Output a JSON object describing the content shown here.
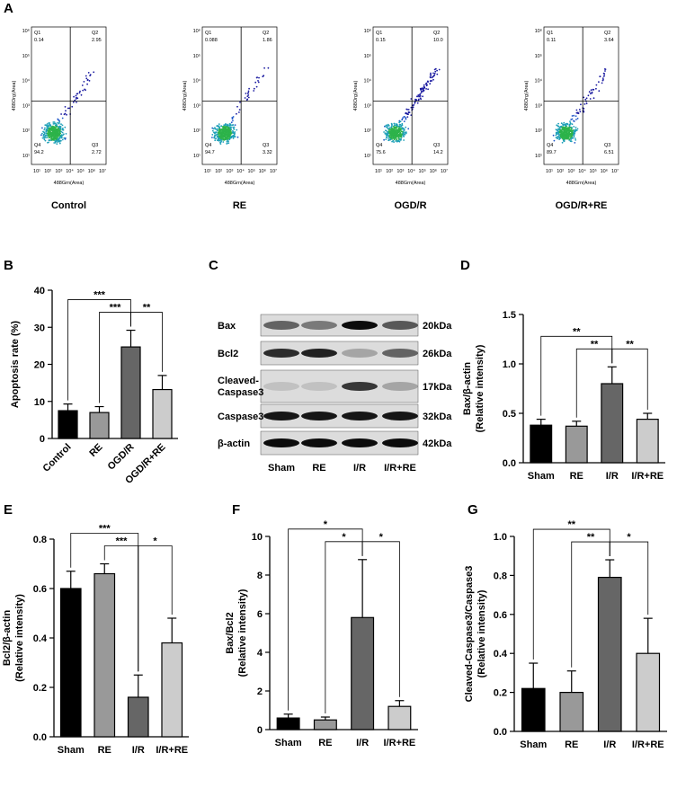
{
  "panel_labels": [
    "A",
    "B",
    "C",
    "D",
    "E",
    "F",
    "G"
  ],
  "flow_cytometry": {
    "x_axis_title": "488Grn(Area)",
    "y_axis_title": "488Org(Area)",
    "x_tick_labels": [
      "10¹",
      "10²",
      "10³",
      "10⁴",
      "10⁵",
      "10⁶",
      "10⁷"
    ],
    "y_tick_labels": [
      "10¹",
      "10²",
      "10³",
      "10⁴",
      "10⁵",
      "10⁶"
    ],
    "quadrant_names": [
      "Q1",
      "Q2",
      "Q3",
      "Q4"
    ],
    "plots": [
      {
        "name": "Control",
        "quadrants": [
          "0.14",
          "2.95",
          "2.72",
          "94.2"
        ]
      },
      {
        "name": "RE",
        "quadrants": [
          "0.088",
          "1.86",
          "3.32",
          "94.7"
        ]
      },
      {
        "name": "OGD/R",
        "quadrants": [
          "0.15",
          "10.0",
          "14.2",
          "75.6"
        ]
      },
      {
        "name": "OGD/R+RE",
        "quadrants": [
          "0.11",
          "3.64",
          "6.51",
          "89.7"
        ]
      }
    ]
  },
  "western_blot": {
    "proteins": [
      "Bax",
      "Bcl2",
      "Cleaved-\nCaspase3",
      "Caspase3",
      "β-actin"
    ],
    "sizes": [
      "20kDa",
      "26kDa",
      "17kDa",
      "32kDa",
      "42kDa"
    ],
    "lanes": [
      "Sham",
      "RE",
      "I/R",
      "I/R+RE"
    ]
  },
  "chart_data": [
    {
      "type": "bar",
      "ylabel": [
        "Apoptosis rate (%)"
      ],
      "categories": [
        "Control",
        "RE",
        "OGD/R",
        "OGD/R+RE"
      ],
      "values": [
        7.5,
        7,
        24.7,
        13.2
      ],
      "errors": [
        1.8,
        1.6,
        4.5,
        3.8
      ],
      "colors": [
        "#000000",
        "#999999",
        "#666666",
        "#cccccc"
      ],
      "ylim": [
        0,
        40
      ],
      "yticks": [
        0,
        10,
        20,
        30,
        40
      ],
      "significance": [
        {
          "pair": [
            "Control",
            "OGD/R"
          ],
          "label": "***"
        },
        {
          "pair": [
            "RE",
            "OGD/R"
          ],
          "label": "***"
        },
        {
          "pair": [
            "OGD/R",
            "OGD/R+RE"
          ],
          "label": "**"
        }
      ]
    },
    {
      "type": "bar",
      "ylabel": [
        "Bax/β-actin",
        "(Relative intensity)"
      ],
      "categories": [
        "Sham",
        "RE",
        "I/R",
        "I/R+RE"
      ],
      "values": [
        0.38,
        0.37,
        0.8,
        0.44
      ],
      "errors": [
        0.06,
        0.05,
        0.17,
        0.06
      ],
      "colors": [
        "#000000",
        "#999999",
        "#666666",
        "#cccccc"
      ],
      "ylim": [
        0,
        1.5
      ],
      "yticks": [
        {
          "value": 0,
          "label": "0.0"
        },
        0.5,
        {
          "value": 1,
          "label": "1.0"
        },
        1.5
      ],
      "significance": [
        {
          "pair": [
            "Sham",
            "I/R"
          ],
          "label": "**"
        },
        {
          "pair": [
            "RE",
            "I/R"
          ],
          "label": "**"
        },
        {
          "pair": [
            "I/R",
            "I/R+RE"
          ],
          "label": "**"
        }
      ]
    },
    {
      "type": "bar",
      "ylabel": [
        "Bcl2/β-actin",
        "(Relative intensity)"
      ],
      "categories": [
        "Sham",
        "RE",
        "I/R",
        "I/R+RE"
      ],
      "values": [
        0.6,
        0.66,
        0.16,
        0.38
      ],
      "errors": [
        0.07,
        0.04,
        0.09,
        0.1
      ],
      "colors": [
        "#000000",
        "#999999",
        "#666666",
        "#cccccc"
      ],
      "ylim": [
        0,
        0.8
      ],
      "yticks": [
        {
          "value": 0,
          "label": "0.0"
        },
        0.2,
        0.4,
        0.6,
        0.8
      ],
      "significance": [
        {
          "pair": [
            "Sham",
            "I/R"
          ],
          "label": "***"
        },
        {
          "pair": [
            "RE",
            "I/R"
          ],
          "label": "***"
        },
        {
          "pair": [
            "I/R",
            "I/R+RE"
          ],
          "label": "*"
        }
      ]
    },
    {
      "type": "bar",
      "ylabel": [
        "Bax/Bcl2",
        "(Relative intensity)"
      ],
      "categories": [
        "Sham",
        "RE",
        "I/R",
        "I/R+RE"
      ],
      "values": [
        0.6,
        0.5,
        5.8,
        1.2
      ],
      "errors": [
        0.2,
        0.15,
        3,
        0.3
      ],
      "colors": [
        "#000000",
        "#999999",
        "#666666",
        "#cccccc"
      ],
      "ylim": [
        0,
        10
      ],
      "yticks": [
        0,
        2,
        4,
        6,
        8,
        10
      ],
      "significance": [
        {
          "pair": [
            "Sham",
            "I/R"
          ],
          "label": "*"
        },
        {
          "pair": [
            "RE",
            "I/R"
          ],
          "label": "*"
        },
        {
          "pair": [
            "I/R",
            "I/R+RE"
          ],
          "label": "*"
        }
      ]
    },
    {
      "type": "bar",
      "ylabel": [
        "Cleaved-Caspase3/Caspase3",
        "(Relative intensity)"
      ],
      "categories": [
        "Sham",
        "RE",
        "I/R",
        "I/R+RE"
      ],
      "values": [
        0.22,
        0.2,
        0.79,
        0.4
      ],
      "errors": [
        0.13,
        0.11,
        0.09,
        0.18
      ],
      "colors": [
        "#000000",
        "#999999",
        "#666666",
        "#cccccc"
      ],
      "ylim": [
        0,
        1
      ],
      "yticks": [
        {
          "value": 0,
          "label": "0.0"
        },
        0.2,
        0.4,
        0.6,
        0.8,
        {
          "value": 1,
          "label": "1.0"
        }
      ],
      "significance": [
        {
          "pair": [
            "Sham",
            "I/R"
          ],
          "label": "**"
        },
        {
          "pair": [
            "RE",
            "I/R"
          ],
          "label": "**"
        },
        {
          "pair": [
            "I/R",
            "I/R+RE"
          ],
          "label": "*"
        }
      ]
    }
  ]
}
